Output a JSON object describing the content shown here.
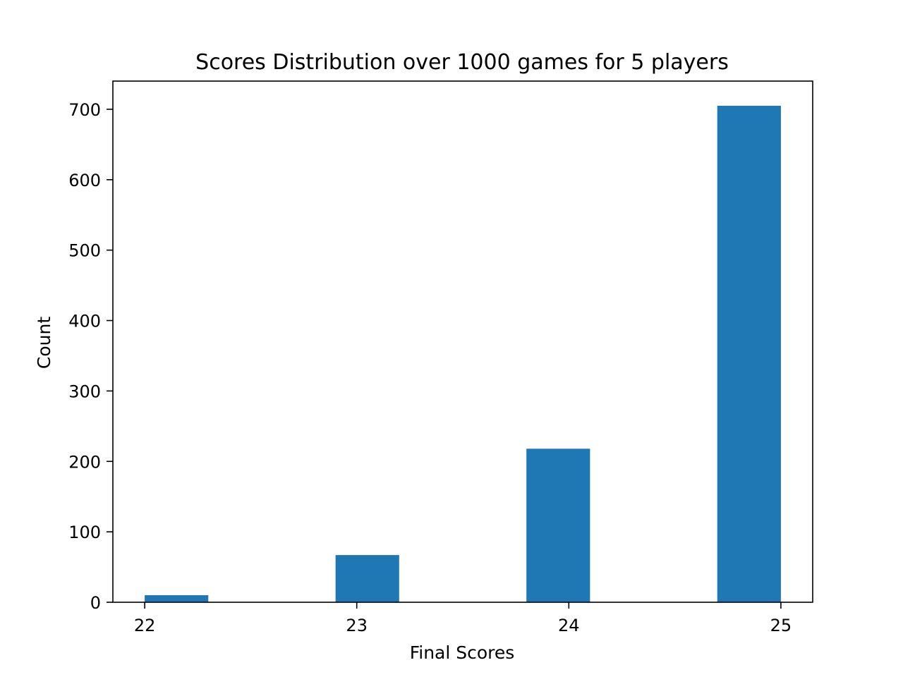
{
  "chart_data": {
    "type": "bar",
    "title": "Scores Distribution over 1000 games for 5 players",
    "xlabel": "Final Scores",
    "ylabel": "Count",
    "x_ticks": [
      22,
      23,
      24,
      25
    ],
    "x_tick_labels": [
      "22",
      "23",
      "24",
      "25"
    ],
    "y_ticks": [
      0,
      100,
      200,
      300,
      400,
      500,
      600,
      700
    ],
    "y_tick_labels": [
      "0",
      "100",
      "200",
      "300",
      "400",
      "500",
      "600",
      "700"
    ],
    "xlim": [
      21.85,
      25.15
    ],
    "ylim": [
      0,
      740
    ],
    "bars": [
      {
        "x_start": 22.0,
        "x_end": 22.3,
        "value": 10
      },
      {
        "x_start": 22.9,
        "x_end": 23.2,
        "value": 67
      },
      {
        "x_start": 23.8,
        "x_end": 24.1,
        "value": 218
      },
      {
        "x_start": 24.7,
        "x_end": 25.0,
        "value": 705
      }
    ],
    "bar_color": "#1f77b4",
    "grid": false,
    "legend": null
  }
}
